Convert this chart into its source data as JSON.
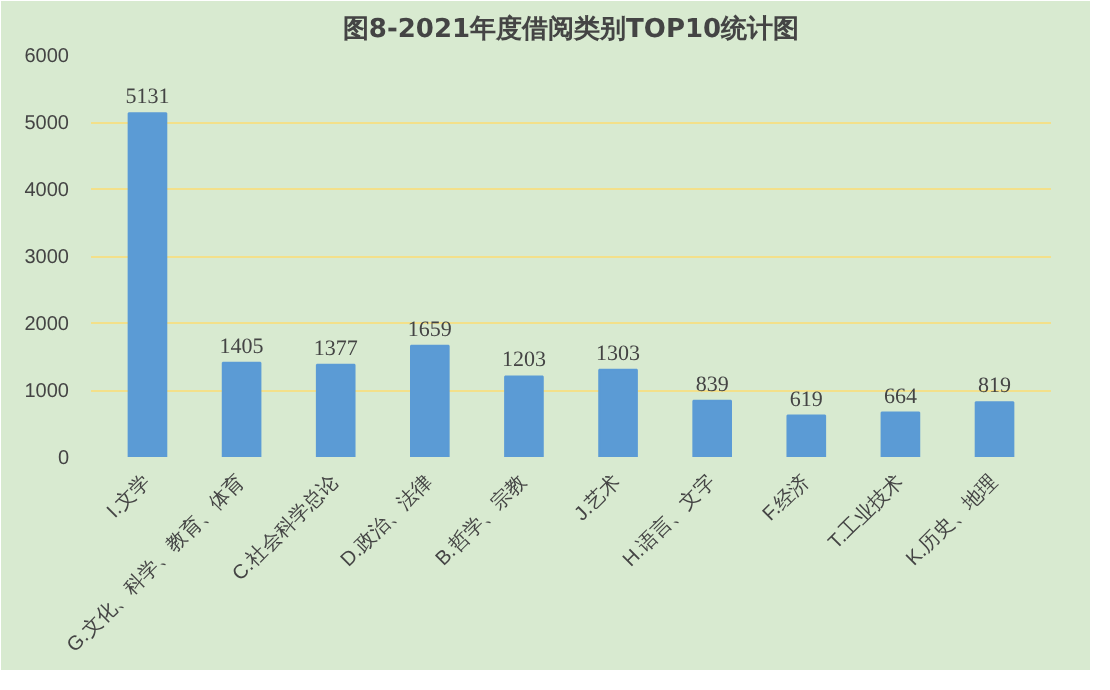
{
  "chart_data": {
    "type": "bar",
    "title": "图8-2021年度借阅类别TOP10统计图",
    "categories": [
      "I.文学",
      "G.文化、科学、教育、体育",
      "C.社会科学总论",
      "D.政治、法律",
      "B.哲学、宗教",
      "J.艺术",
      "H.语言、文字",
      "F.经济",
      "T.工业技术",
      "K.历史、地理"
    ],
    "values": [
      5131,
      1405,
      1377,
      1659,
      1203,
      1303,
      839,
      619,
      664,
      819
    ],
    "color": "#5b9bd5",
    "ylim": [
      0,
      6000
    ],
    "yticks": [
      0,
      1000,
      2000,
      3000,
      4000,
      5000,
      6000
    ],
    "grid": "y",
    "data_labels": true
  }
}
